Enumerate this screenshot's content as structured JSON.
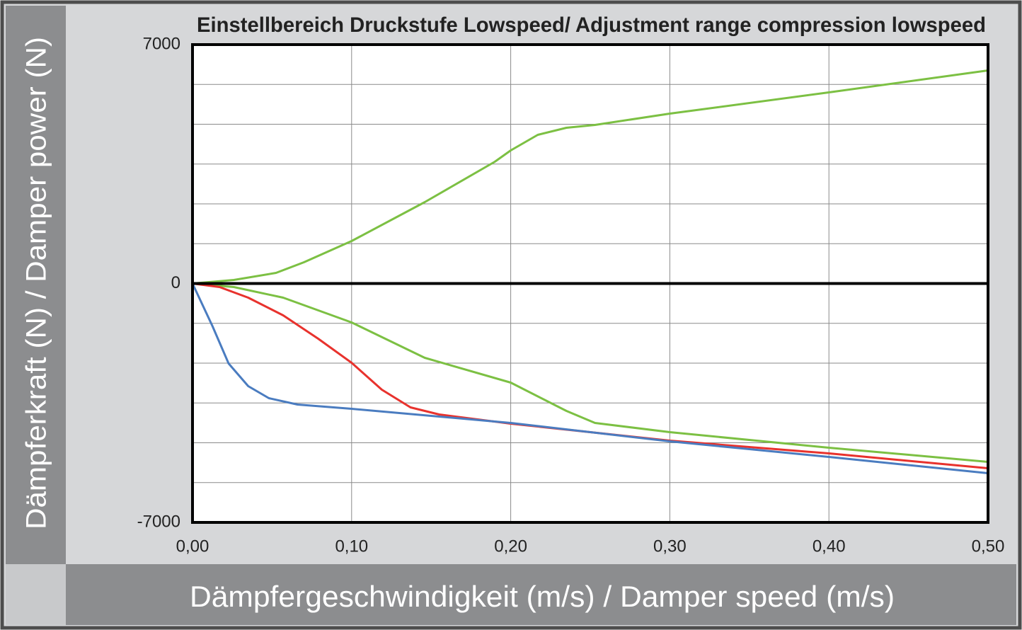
{
  "chart_data": {
    "type": "line",
    "title": "Einstellbereich Druckstufe Lowspeed/ Adjustment range compression lowspeed",
    "x_label": "Dämpfergeschwindigkeit (m/s) / Damper speed (m/s)",
    "y_label": "Dämpferkraft (N) / Damper power (N)",
    "xlim": [
      0,
      0.5
    ],
    "ylim": [
      -7000,
      7000
    ],
    "xticks": [
      {
        "value": 0,
        "label": "0,00"
      },
      {
        "value": 0.1,
        "label": "0,10"
      },
      {
        "value": 0.2,
        "label": "0,20"
      },
      {
        "value": 0.3,
        "label": "0,30"
      },
      {
        "value": 0.4,
        "label": "0,40"
      },
      {
        "value": 0.5,
        "label": "0,50"
      }
    ],
    "yticks": [
      -7000,
      0,
      7000
    ],
    "ygrid": [
      -5833.33,
      -4666.67,
      -3500,
      -2333.33,
      -1166.67,
      1166.67,
      2333.33,
      3500,
      4666.67,
      5833.33
    ],
    "grid": true,
    "series": [
      {
        "color": "#7cc043",
        "x": [
          0,
          0.026,
          0.0525,
          0.07,
          0.1,
          0.146,
          0.19,
          0.2,
          0.217,
          0.235,
          0.253,
          0.3,
          0.4,
          0.5
        ],
        "values": [
          0,
          104,
          311,
          622,
          1244,
          2385,
          3567,
          3900,
          4355,
          4563,
          4646,
          4978,
          5600,
          6243
        ]
      },
      {
        "color": "#7cc043",
        "x": [
          0,
          0.026,
          0.057,
          0.1,
          0.146,
          0.2,
          0.235,
          0.253,
          0.3,
          0.4,
          0.5
        ],
        "values": [
          0,
          -104,
          -415,
          -1141,
          -2178,
          -2904,
          -3733,
          -4085,
          -4355,
          -4812,
          -5226
        ]
      },
      {
        "color": "#e8322d",
        "x": [
          0,
          0.017,
          0.035,
          0.057,
          0.079,
          0.1,
          0.119,
          0.137,
          0.155,
          0.2,
          0.3,
          0.4,
          0.5
        ],
        "values": [
          0,
          -104,
          -415,
          -933,
          -1618,
          -2323,
          -3111,
          -3630,
          -3837,
          -4107,
          -4604,
          -4978,
          -5413
        ]
      },
      {
        "color": "#4a7cc0",
        "x": [
          0,
          0.0125,
          0.0227,
          0.035,
          0.048,
          0.066,
          0.1,
          0.2,
          0.3,
          0.4,
          0.5
        ],
        "values": [
          0,
          -1244,
          -2344,
          -3007,
          -3360,
          -3547,
          -3671,
          -4085,
          -4625,
          -5081,
          -5558
        ]
      }
    ]
  }
}
